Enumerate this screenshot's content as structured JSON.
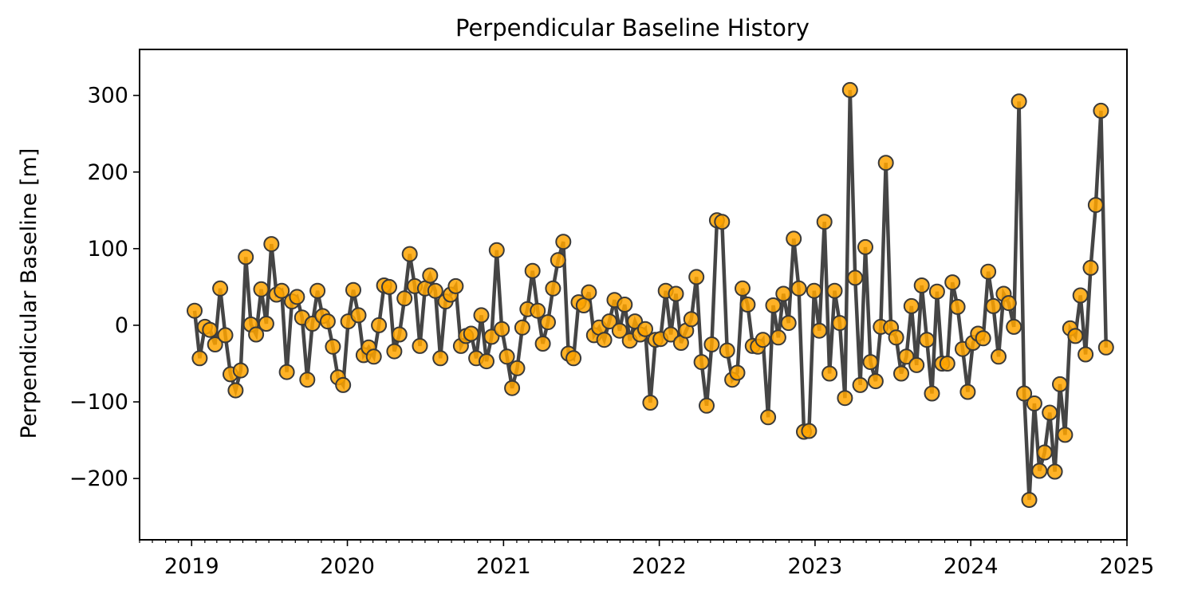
{
  "chart_data": {
    "type": "line",
    "title": "Perpendicular Baseline History",
    "xlabel": "",
    "ylabel": "Perpendicular Baseline [m]",
    "x_ticks": [
      "2019",
      "2020",
      "2021",
      "2022",
      "2023",
      "2024",
      "2025"
    ],
    "y_ticks": [
      "−200",
      "−100",
      "0",
      "100",
      "200",
      "300"
    ],
    "y_tick_values": [
      -200,
      -100,
      0,
      100,
      200,
      300
    ],
    "xlim": [
      "2018-09-01",
      "2025-01-01"
    ],
    "ylim": [
      -280,
      360
    ],
    "grid": false,
    "legend": "none",
    "colors": {
      "line": "#454545",
      "marker_fill": "#ffa500",
      "marker_edge": "#3a3a3a"
    },
    "series": [
      {
        "points": [
          [
            "2019-01-08",
            19
          ],
          [
            "2019-01-20",
            -43
          ],
          [
            "2019-02-01",
            -2
          ],
          [
            "2019-02-13",
            -6
          ],
          [
            "2019-02-25",
            -25
          ],
          [
            "2019-03-09",
            48
          ],
          [
            "2019-03-21",
            -13
          ],
          [
            "2019-04-02",
            -64
          ],
          [
            "2019-04-14",
            -85
          ],
          [
            "2019-04-26",
            -59
          ],
          [
            "2019-05-08",
            89
          ],
          [
            "2019-05-20",
            1
          ],
          [
            "2019-06-01",
            -12
          ],
          [
            "2019-06-13",
            47
          ],
          [
            "2019-06-25",
            2
          ],
          [
            "2019-07-07",
            106
          ],
          [
            "2019-07-19",
            40
          ],
          [
            "2019-07-31",
            45
          ],
          [
            "2019-08-12",
            -61
          ],
          [
            "2019-08-24",
            31
          ],
          [
            "2019-09-05",
            37
          ],
          [
            "2019-09-17",
            10
          ],
          [
            "2019-09-29",
            -71
          ],
          [
            "2019-10-11",
            2
          ],
          [
            "2019-10-23",
            45
          ],
          [
            "2019-11-04",
            12
          ],
          [
            "2019-11-16",
            5
          ],
          [
            "2019-11-28",
            -28
          ],
          [
            "2019-12-10",
            -68
          ],
          [
            "2019-12-22",
            -78
          ],
          [
            "2020-01-03",
            5
          ],
          [
            "2020-01-15",
            46
          ],
          [
            "2020-01-27",
            13
          ],
          [
            "2020-02-08",
            -39
          ],
          [
            "2020-02-20",
            -29
          ],
          [
            "2020-03-03",
            -41
          ],
          [
            "2020-03-15",
            0
          ],
          [
            "2020-03-27",
            52
          ],
          [
            "2020-04-08",
            50
          ],
          [
            "2020-04-20",
            -34
          ],
          [
            "2020-05-02",
            -12
          ],
          [
            "2020-05-14",
            35
          ],
          [
            "2020-05-26",
            93
          ],
          [
            "2020-06-07",
            51
          ],
          [
            "2020-06-19",
            -27
          ],
          [
            "2020-07-01",
            48
          ],
          [
            "2020-07-13",
            65
          ],
          [
            "2020-07-25",
            45
          ],
          [
            "2020-08-06",
            -43
          ],
          [
            "2020-08-18",
            31
          ],
          [
            "2020-08-30",
            40
          ],
          [
            "2020-09-11",
            51
          ],
          [
            "2020-09-23",
            -27
          ],
          [
            "2020-10-05",
            -14
          ],
          [
            "2020-10-17",
            -11
          ],
          [
            "2020-10-29",
            -43
          ],
          [
            "2020-11-10",
            13
          ],
          [
            "2020-11-22",
            -47
          ],
          [
            "2020-12-04",
            -15
          ],
          [
            "2020-12-16",
            98
          ],
          [
            "2020-12-28",
            -5
          ],
          [
            "2021-01-09",
            -41
          ],
          [
            "2021-01-21",
            -82
          ],
          [
            "2021-02-02",
            -56
          ],
          [
            "2021-02-14",
            -3
          ],
          [
            "2021-02-26",
            21
          ],
          [
            "2021-03-10",
            71
          ],
          [
            "2021-03-22",
            19
          ],
          [
            "2021-04-03",
            -24
          ],
          [
            "2021-04-15",
            4
          ],
          [
            "2021-04-27",
            48
          ],
          [
            "2021-05-09",
            85
          ],
          [
            "2021-05-21",
            109
          ],
          [
            "2021-06-02",
            -37
          ],
          [
            "2021-06-14",
            -43
          ],
          [
            "2021-06-26",
            30
          ],
          [
            "2021-07-08",
            26
          ],
          [
            "2021-07-20",
            43
          ],
          [
            "2021-08-01",
            -13
          ],
          [
            "2021-08-13",
            -3
          ],
          [
            "2021-08-25",
            -19
          ],
          [
            "2021-09-06",
            5
          ],
          [
            "2021-09-18",
            33
          ],
          [
            "2021-09-30",
            -7
          ],
          [
            "2021-10-12",
            27
          ],
          [
            "2021-10-24",
            -20
          ],
          [
            "2021-11-05",
            5
          ],
          [
            "2021-11-17",
            -12
          ],
          [
            "2021-11-29",
            -5
          ],
          [
            "2021-12-11",
            -101
          ],
          [
            "2021-12-23",
            -19
          ],
          [
            "2022-01-04",
            -18
          ],
          [
            "2022-01-16",
            45
          ],
          [
            "2022-01-28",
            -12
          ],
          [
            "2022-02-09",
            41
          ],
          [
            "2022-02-21",
            -23
          ],
          [
            "2022-03-05",
            -7
          ],
          [
            "2022-03-17",
            8
          ],
          [
            "2022-03-29",
            63
          ],
          [
            "2022-04-10",
            -48
          ],
          [
            "2022-04-22",
            -105
          ],
          [
            "2022-05-04",
            -25
          ],
          [
            "2022-05-16",
            137
          ],
          [
            "2022-05-28",
            135
          ],
          [
            "2022-06-09",
            -33
          ],
          [
            "2022-06-21",
            -71
          ],
          [
            "2022-07-03",
            -62
          ],
          [
            "2022-07-15",
            48
          ],
          [
            "2022-07-27",
            27
          ],
          [
            "2022-08-08",
            -27
          ],
          [
            "2022-08-20",
            -28
          ],
          [
            "2022-09-01",
            -19
          ],
          [
            "2022-09-13",
            -120
          ],
          [
            "2022-09-25",
            26
          ],
          [
            "2022-10-07",
            -16
          ],
          [
            "2022-10-19",
            41
          ],
          [
            "2022-10-31",
            3
          ],
          [
            "2022-11-12",
            113
          ],
          [
            "2022-11-24",
            48
          ],
          [
            "2022-12-06",
            -139
          ],
          [
            "2022-12-18",
            -138
          ],
          [
            "2022-12-30",
            45
          ],
          [
            "2023-01-11",
            -7
          ],
          [
            "2023-01-23",
            135
          ],
          [
            "2023-02-04",
            -63
          ],
          [
            "2023-02-16",
            45
          ],
          [
            "2023-02-28",
            3
          ],
          [
            "2023-03-12",
            -95
          ],
          [
            "2023-03-24",
            307
          ],
          [
            "2023-04-05",
            62
          ],
          [
            "2023-04-17",
            -78
          ],
          [
            "2023-04-29",
            102
          ],
          [
            "2023-05-11",
            -48
          ],
          [
            "2023-05-23",
            -73
          ],
          [
            "2023-06-04",
            -2
          ],
          [
            "2023-06-16",
            212
          ],
          [
            "2023-06-28",
            -3
          ],
          [
            "2023-07-10",
            -16
          ],
          [
            "2023-07-22",
            -63
          ],
          [
            "2023-08-03",
            -41
          ],
          [
            "2023-08-15",
            25
          ],
          [
            "2023-08-27",
            -52
          ],
          [
            "2023-09-08",
            52
          ],
          [
            "2023-09-20",
            -19
          ],
          [
            "2023-10-02",
            -89
          ],
          [
            "2023-10-14",
            44
          ],
          [
            "2023-10-26",
            -50
          ],
          [
            "2023-11-07",
            -50
          ],
          [
            "2023-11-19",
            56
          ],
          [
            "2023-12-01",
            24
          ],
          [
            "2023-12-13",
            -31
          ],
          [
            "2023-12-25",
            -87
          ],
          [
            "2024-01-06",
            -23
          ],
          [
            "2024-01-18",
            -11
          ],
          [
            "2024-01-30",
            -17
          ],
          [
            "2024-02-11",
            70
          ],
          [
            "2024-02-23",
            25
          ],
          [
            "2024-03-06",
            -41
          ],
          [
            "2024-03-18",
            41
          ],
          [
            "2024-03-30",
            29
          ],
          [
            "2024-04-11",
            -2
          ],
          [
            "2024-04-23",
            292
          ],
          [
            "2024-05-05",
            -89
          ],
          [
            "2024-05-17",
            -228
          ],
          [
            "2024-05-29",
            -102
          ],
          [
            "2024-06-10",
            -190
          ],
          [
            "2024-06-22",
            -166
          ],
          [
            "2024-07-04",
            -114
          ],
          [
            "2024-07-16",
            -191
          ],
          [
            "2024-07-28",
            -77
          ],
          [
            "2024-08-09",
            -143
          ],
          [
            "2024-08-21",
            -4
          ],
          [
            "2024-09-02",
            -14
          ],
          [
            "2024-09-14",
            39
          ],
          [
            "2024-09-26",
            -38
          ],
          [
            "2024-10-08",
            75
          ],
          [
            "2024-10-20",
            157
          ],
          [
            "2024-11-01",
            280
          ],
          [
            "2024-11-13",
            -29
          ]
        ]
      }
    ]
  }
}
